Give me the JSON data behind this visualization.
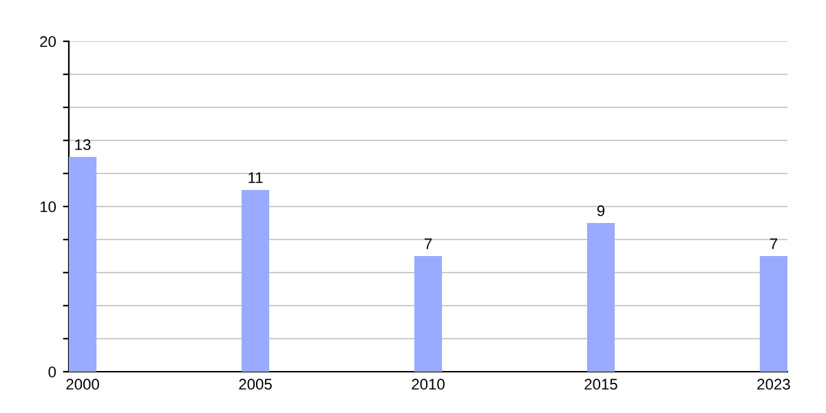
{
  "chart_data": {
    "type": "bar",
    "categories": [
      "2000",
      "2005",
      "2010",
      "2015",
      "2023"
    ],
    "values": [
      13,
      11,
      7,
      9,
      7
    ],
    "color": "#99aaff",
    "data_labels": true,
    "ylim": [
      0,
      20
    ],
    "yticks": [
      0,
      {
        "value": 2,
        "label": null
      },
      {
        "value": 4,
        "label": null
      },
      {
        "value": 6,
        "label": null
      },
      {
        "value": 8,
        "label": null
      },
      10,
      {
        "value": 12,
        "label": null
      },
      {
        "value": 14,
        "label": null
      },
      {
        "value": 16,
        "label": null
      },
      {
        "value": 18,
        "label": null
      },
      20
    ],
    "grid": "y"
  }
}
